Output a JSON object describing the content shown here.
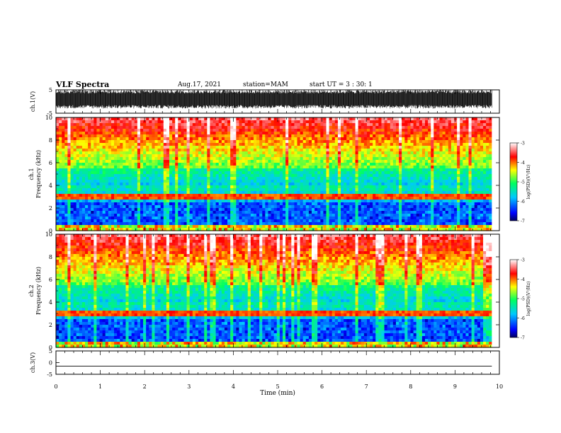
{
  "header": {
    "title": "VLF Spectra",
    "date": "Aug.17, 2021",
    "station": "station=MAM",
    "start": "start UT =  3 : 30: 1"
  },
  "chart_data": [
    {
      "type": "line",
      "panel": "ch1-waveform",
      "ylabel": "ch.1(V)",
      "ylim": [
        -5,
        5
      ],
      "y_ticks": [
        "5",
        "-5"
      ],
      "description_values": "dense noise waveform, amplitude spans approx -3 to +5 V",
      "color": "#000000"
    },
    {
      "type": "heatmap",
      "panel": "ch1-spectrogram",
      "ylabel": "ch.1\nFrequency (kHz)",
      "ylim": [
        0,
        10
      ],
      "y_ticks": [
        "0",
        "2",
        "4",
        "6",
        "8",
        "10"
      ],
      "colorbar": {
        "label": "log(PSD)(V²/Hz)",
        "range": [
          -7,
          -3
        ],
        "ticks": [
          "-3",
          "-4",
          "-5",
          "-6",
          "-7"
        ],
        "colors": [
          "#000060",
          "#0000ff",
          "#00c8ff",
          "#00ff60",
          "#ffff00",
          "#ff0000",
          "#ffffff"
        ]
      },
      "features_khz": {
        "lower_band_top": 2.5,
        "bright_line": 2.9,
        "bright_low": 0.3
      }
    },
    {
      "type": "heatmap",
      "panel": "ch2-spectrogram",
      "ylabel": "ch.2\nFrequency (kHz)",
      "ylim": [
        0,
        10
      ],
      "y_ticks": [
        "0",
        "2",
        "4",
        "6",
        "8",
        "10"
      ],
      "colorbar": {
        "label": "log(PSD)(V²/Hz)",
        "range": [
          -7,
          -3
        ],
        "ticks": [
          "-3",
          "-4",
          "-5",
          "-6",
          "-7"
        ]
      },
      "features_khz": {
        "lower_band_top": 2.4,
        "bright_line": 2.9,
        "bright_low": 0.3
      }
    },
    {
      "type": "line",
      "panel": "ch3-waveform",
      "ylabel": "ch.3(V)",
      "ylim": [
        -5,
        5
      ],
      "y_ticks": [
        "5",
        "0",
        "-5"
      ],
      "constant_value": -1.5,
      "color": "#000000"
    }
  ],
  "x_axis": {
    "label": "Time (min)",
    "range": [
      0,
      10
    ],
    "ticks": [
      "0",
      "1",
      "2",
      "3",
      "4",
      "5",
      "6",
      "7",
      "8",
      "9",
      "10"
    ],
    "data_end": 9.83
  }
}
